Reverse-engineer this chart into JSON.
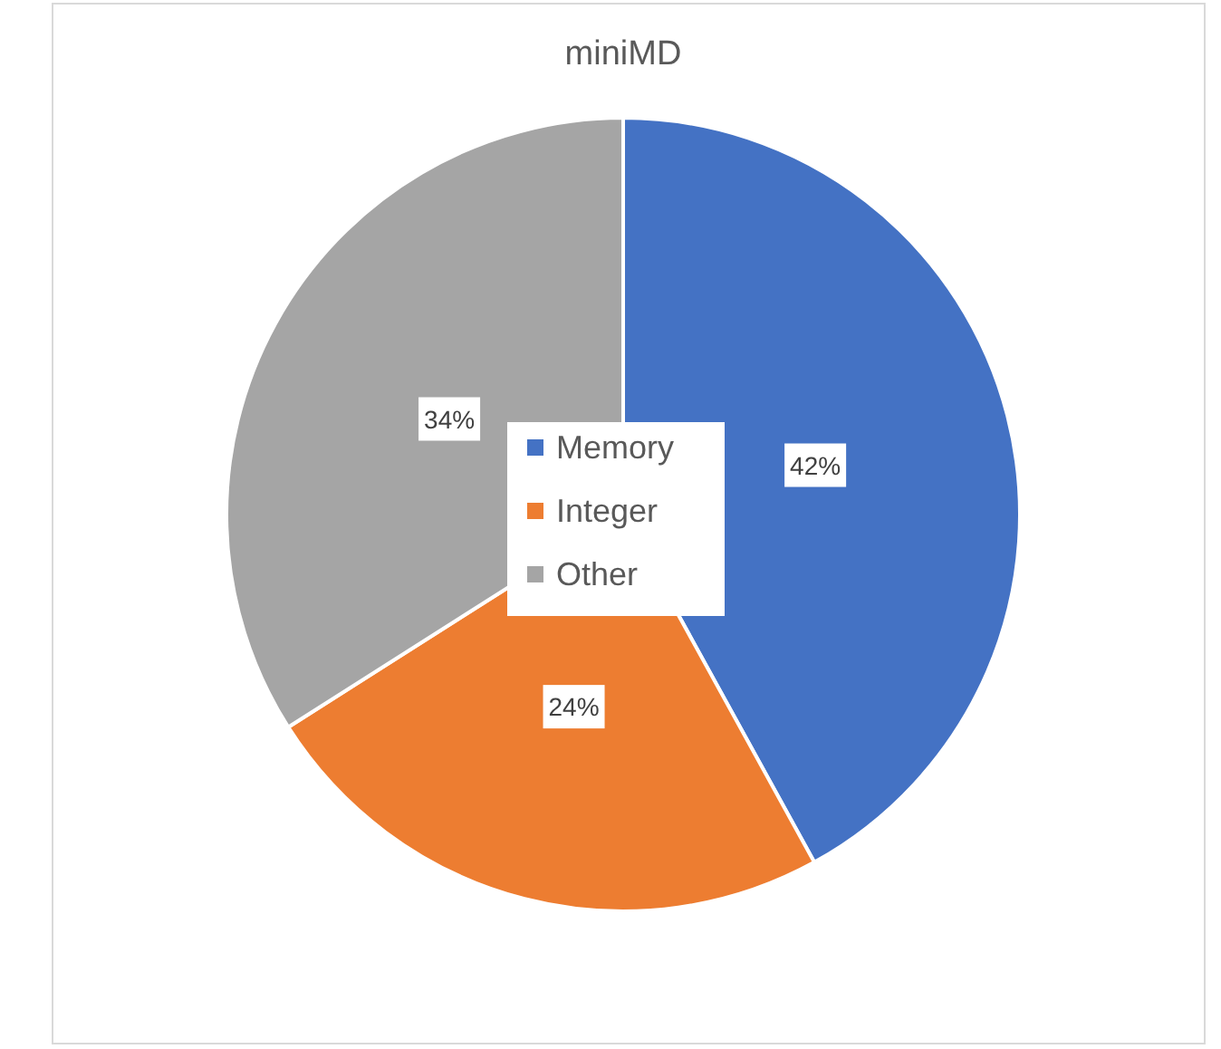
{
  "chart_data": {
    "type": "pie",
    "title": "miniMD",
    "categories": [
      "Memory",
      "Integer",
      "Other"
    ],
    "values": [
      42,
      24,
      34
    ],
    "colors": [
      "#4472c4",
      "#ed7d31",
      "#a5a5a5"
    ],
    "value_labels": [
      "42%",
      "24%",
      "34%"
    ],
    "legend": "center"
  }
}
